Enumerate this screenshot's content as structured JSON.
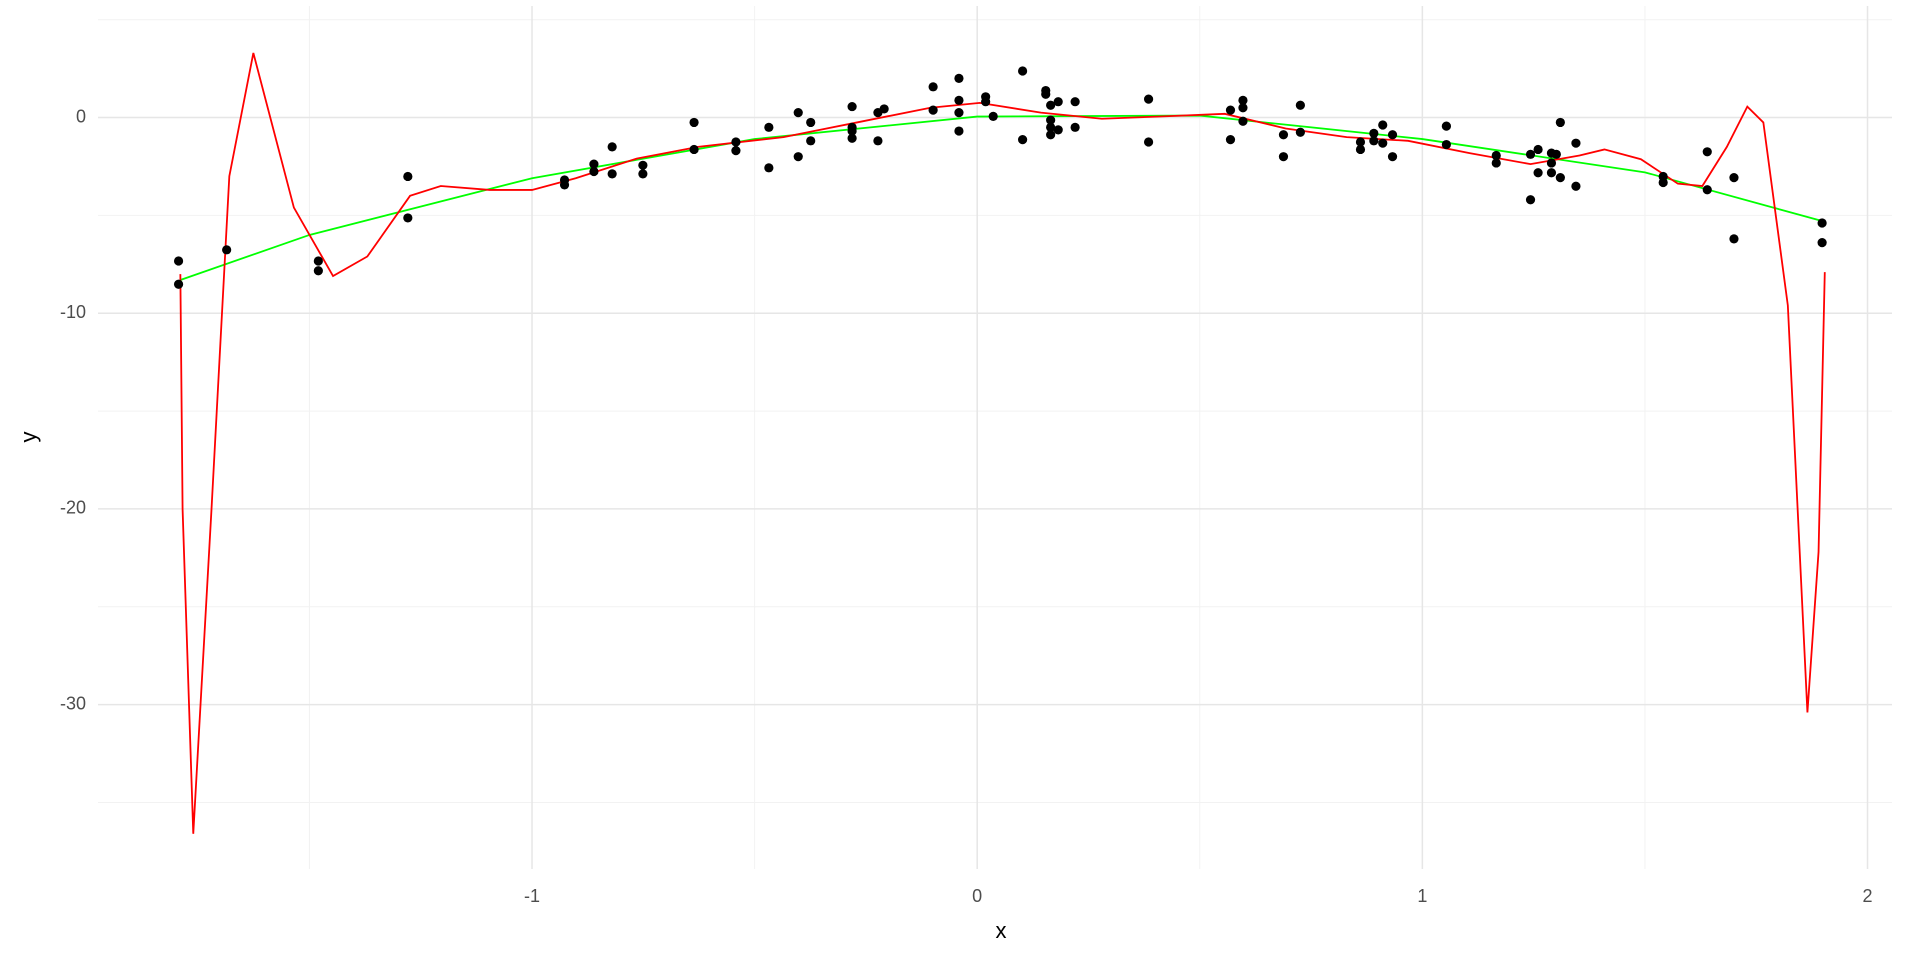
{
  "chart_data": {
    "type": "scatter",
    "x_label": "x",
    "y_label": "y",
    "xlim": [
      -1.975,
      2.055
    ],
    "ylim": [
      -38.4,
      5.7
    ],
    "xticks": [
      -1,
      0,
      1,
      2
    ],
    "yticks": [
      -30,
      -20,
      -10,
      0
    ],
    "grid": true,
    "points": {
      "color": "#000000",
      "x": [
        -1.794,
        -1.794,
        -1.686,
        -1.48,
        -1.48,
        -1.279,
        -1.279,
        -0.927,
        -0.927,
        -0.861,
        -0.861,
        -0.82,
        -0.82,
        -0.751,
        -0.751,
        -0.636,
        -0.636,
        -0.542,
        -0.542,
        -0.468,
        -0.468,
        -0.402,
        -0.402,
        -0.374,
        -0.374,
        -0.281,
        -0.281,
        -0.281,
        -0.281,
        -0.223,
        -0.223,
        -0.209,
        -0.099,
        -0.099,
        -0.041,
        -0.041,
        -0.041,
        -0.041,
        0.019,
        0.019,
        0.036,
        0.102,
        0.102,
        0.154,
        0.154,
        0.165,
        0.165,
        0.165,
        0.165,
        0.182,
        0.182,
        0.22,
        0.22,
        0.385,
        0.385,
        0.569,
        0.569,
        0.597,
        0.597,
        0.597,
        0.688,
        0.688,
        0.726,
        0.726,
        0.861,
        0.861,
        0.891,
        0.891,
        0.911,
        0.911,
        0.933,
        0.933,
        1.054,
        1.054,
        1.166,
        1.166,
        1.243,
        1.243,
        1.26,
        1.26,
        1.29,
        1.29,
        1.29,
        1.301,
        1.31,
        1.31,
        1.345,
        1.345,
        1.541,
        1.541,
        1.64,
        1.64,
        1.7,
        1.7,
        1.898,
        1.898
      ],
      "y": [
        -7.33,
        -8.52,
        -6.76,
        -7.33,
        -7.83,
        -3.01,
        -5.13,
        -3.19,
        -3.44,
        -2.38,
        -2.76,
        -1.5,
        -2.88,
        -2.44,
        -2.88,
        -0.25,
        -1.63,
        -1.25,
        -1.69,
        -0.5,
        -2.57,
        0.25,
        -2.0,
        -0.25,
        -1.19,
        0.56,
        -0.69,
        -1.06,
        -0.5,
        0.25,
        -1.19,
        0.44,
        1.57,
        0.38,
        2.0,
        0.88,
        0.25,
        -0.69,
        1.06,
        0.81,
        0.06,
        2.38,
        -1.13,
        1.38,
        1.19,
        0.63,
        -0.13,
        -0.5,
        -0.88,
        0.81,
        -0.63,
        0.81,
        -0.5,
        0.94,
        -1.25,
        0.38,
        -1.13,
        0.88,
        0.5,
        -0.19,
        -0.88,
        -2.0,
        0.63,
        -0.75,
        -1.25,
        -1.63,
        -0.81,
        -1.19,
        -0.38,
        -1.31,
        -0.88,
        -2.0,
        -0.44,
        -1.38,
        -1.94,
        -2.32,
        -1.88,
        -4.2,
        -1.63,
        -2.82,
        -1.82,
        -2.32,
        -2.82,
        -1.88,
        -0.25,
        -3.07,
        -1.31,
        -3.51,
        -3.01,
        -3.32,
        -1.75,
        -3.69,
        -3.07,
        -6.2,
        -5.39,
        -6.39
      ]
    },
    "series": [
      {
        "color": "#00ff00",
        "x": [
          -1.79,
          -1.5,
          -1.0,
          -0.5,
          0.0,
          0.5,
          1.0,
          1.5,
          1.9
        ],
        "values": [
          -8.3,
          -6.0,
          -3.1,
          -1.1,
          0.05,
          0.1,
          -1.1,
          -2.8,
          -5.3
        ]
      },
      {
        "color": "#ff0000",
        "x": [
          -1.79,
          -1.785,
          -1.761,
          -1.72,
          -1.68,
          -1.626,
          -1.535,
          -1.447,
          -1.37,
          -1.274,
          -1.205,
          -1.095,
          -1.0,
          -0.902,
          -0.765,
          -0.627,
          -0.435,
          -0.27,
          -0.105,
          0.006,
          0.143,
          0.28,
          0.418,
          0.556,
          0.693,
          0.83,
          0.968,
          1.106,
          1.243,
          1.353,
          1.409,
          1.491,
          1.574,
          1.629,
          1.684,
          1.73,
          1.766,
          1.821,
          1.865,
          1.89,
          1.904
        ],
        "values": [
          -8.0,
          -20.0,
          -36.6,
          -20.0,
          -3.0,
          3.3,
          -4.6,
          -8.1,
          -7.1,
          -4.0,
          -3.5,
          -3.7,
          -3.7,
          -3.1,
          -2.1,
          -1.5,
          -1.0,
          -0.25,
          0.5,
          0.75,
          0.25,
          -0.06,
          0.06,
          0.19,
          -0.56,
          -1.0,
          -1.19,
          -1.82,
          -2.38,
          -1.94,
          -1.63,
          -2.13,
          -3.38,
          -3.5,
          -1.5,
          0.56,
          -0.25,
          -9.6,
          -30.4,
          -22.2,
          -7.9
        ]
      }
    ]
  }
}
